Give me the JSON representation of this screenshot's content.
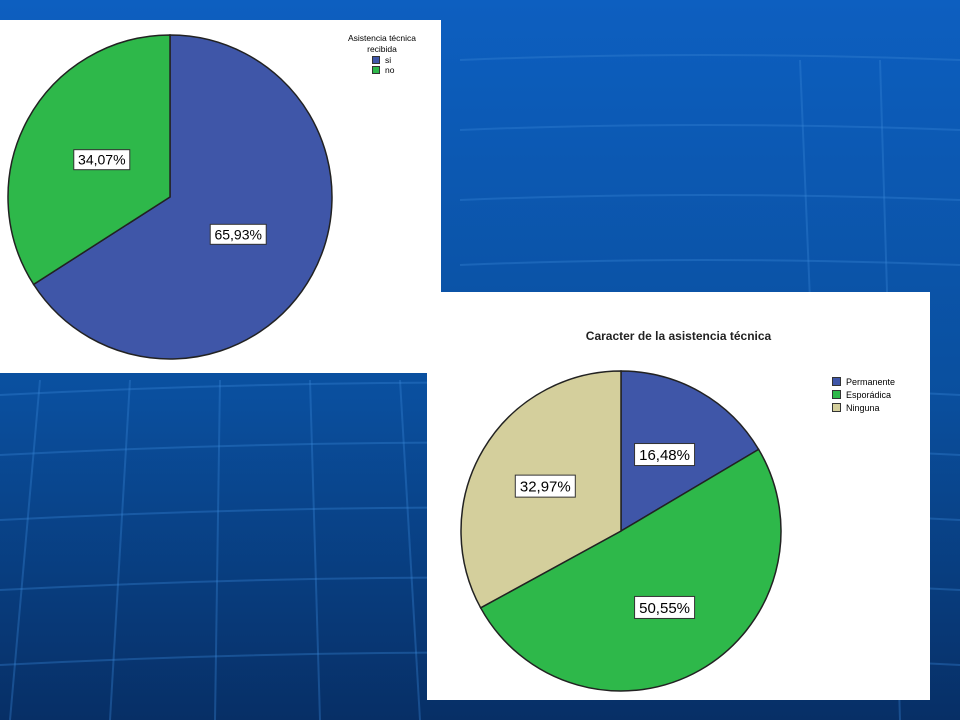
{
  "colors": {
    "blue": "#3f56a8",
    "green": "#2eb84a",
    "beige": "#d4cf9c",
    "background": "#0a4c9a"
  },
  "chart_data": [
    {
      "type": "pie",
      "title": "",
      "legend_title": "Asistencia técnica recibida",
      "legend_position": "top-right",
      "categories": [
        "si",
        "no"
      ],
      "values": [
        65.93,
        34.07
      ],
      "labels": [
        "65,93%",
        "34,07%"
      ],
      "colors": [
        "#3f56a8",
        "#2eb84a"
      ]
    },
    {
      "type": "pie",
      "title": "Caracter de la asistencia técnica",
      "legend_position": "right",
      "categories": [
        "Permanente",
        "Esporádica",
        "Ninguna"
      ],
      "values": [
        16.48,
        50.55,
        32.97
      ],
      "labels": [
        "16,48%",
        "50,55%",
        "32,97%"
      ],
      "colors": [
        "#3f56a8",
        "#2eb84a",
        "#d4cf9c"
      ]
    }
  ]
}
